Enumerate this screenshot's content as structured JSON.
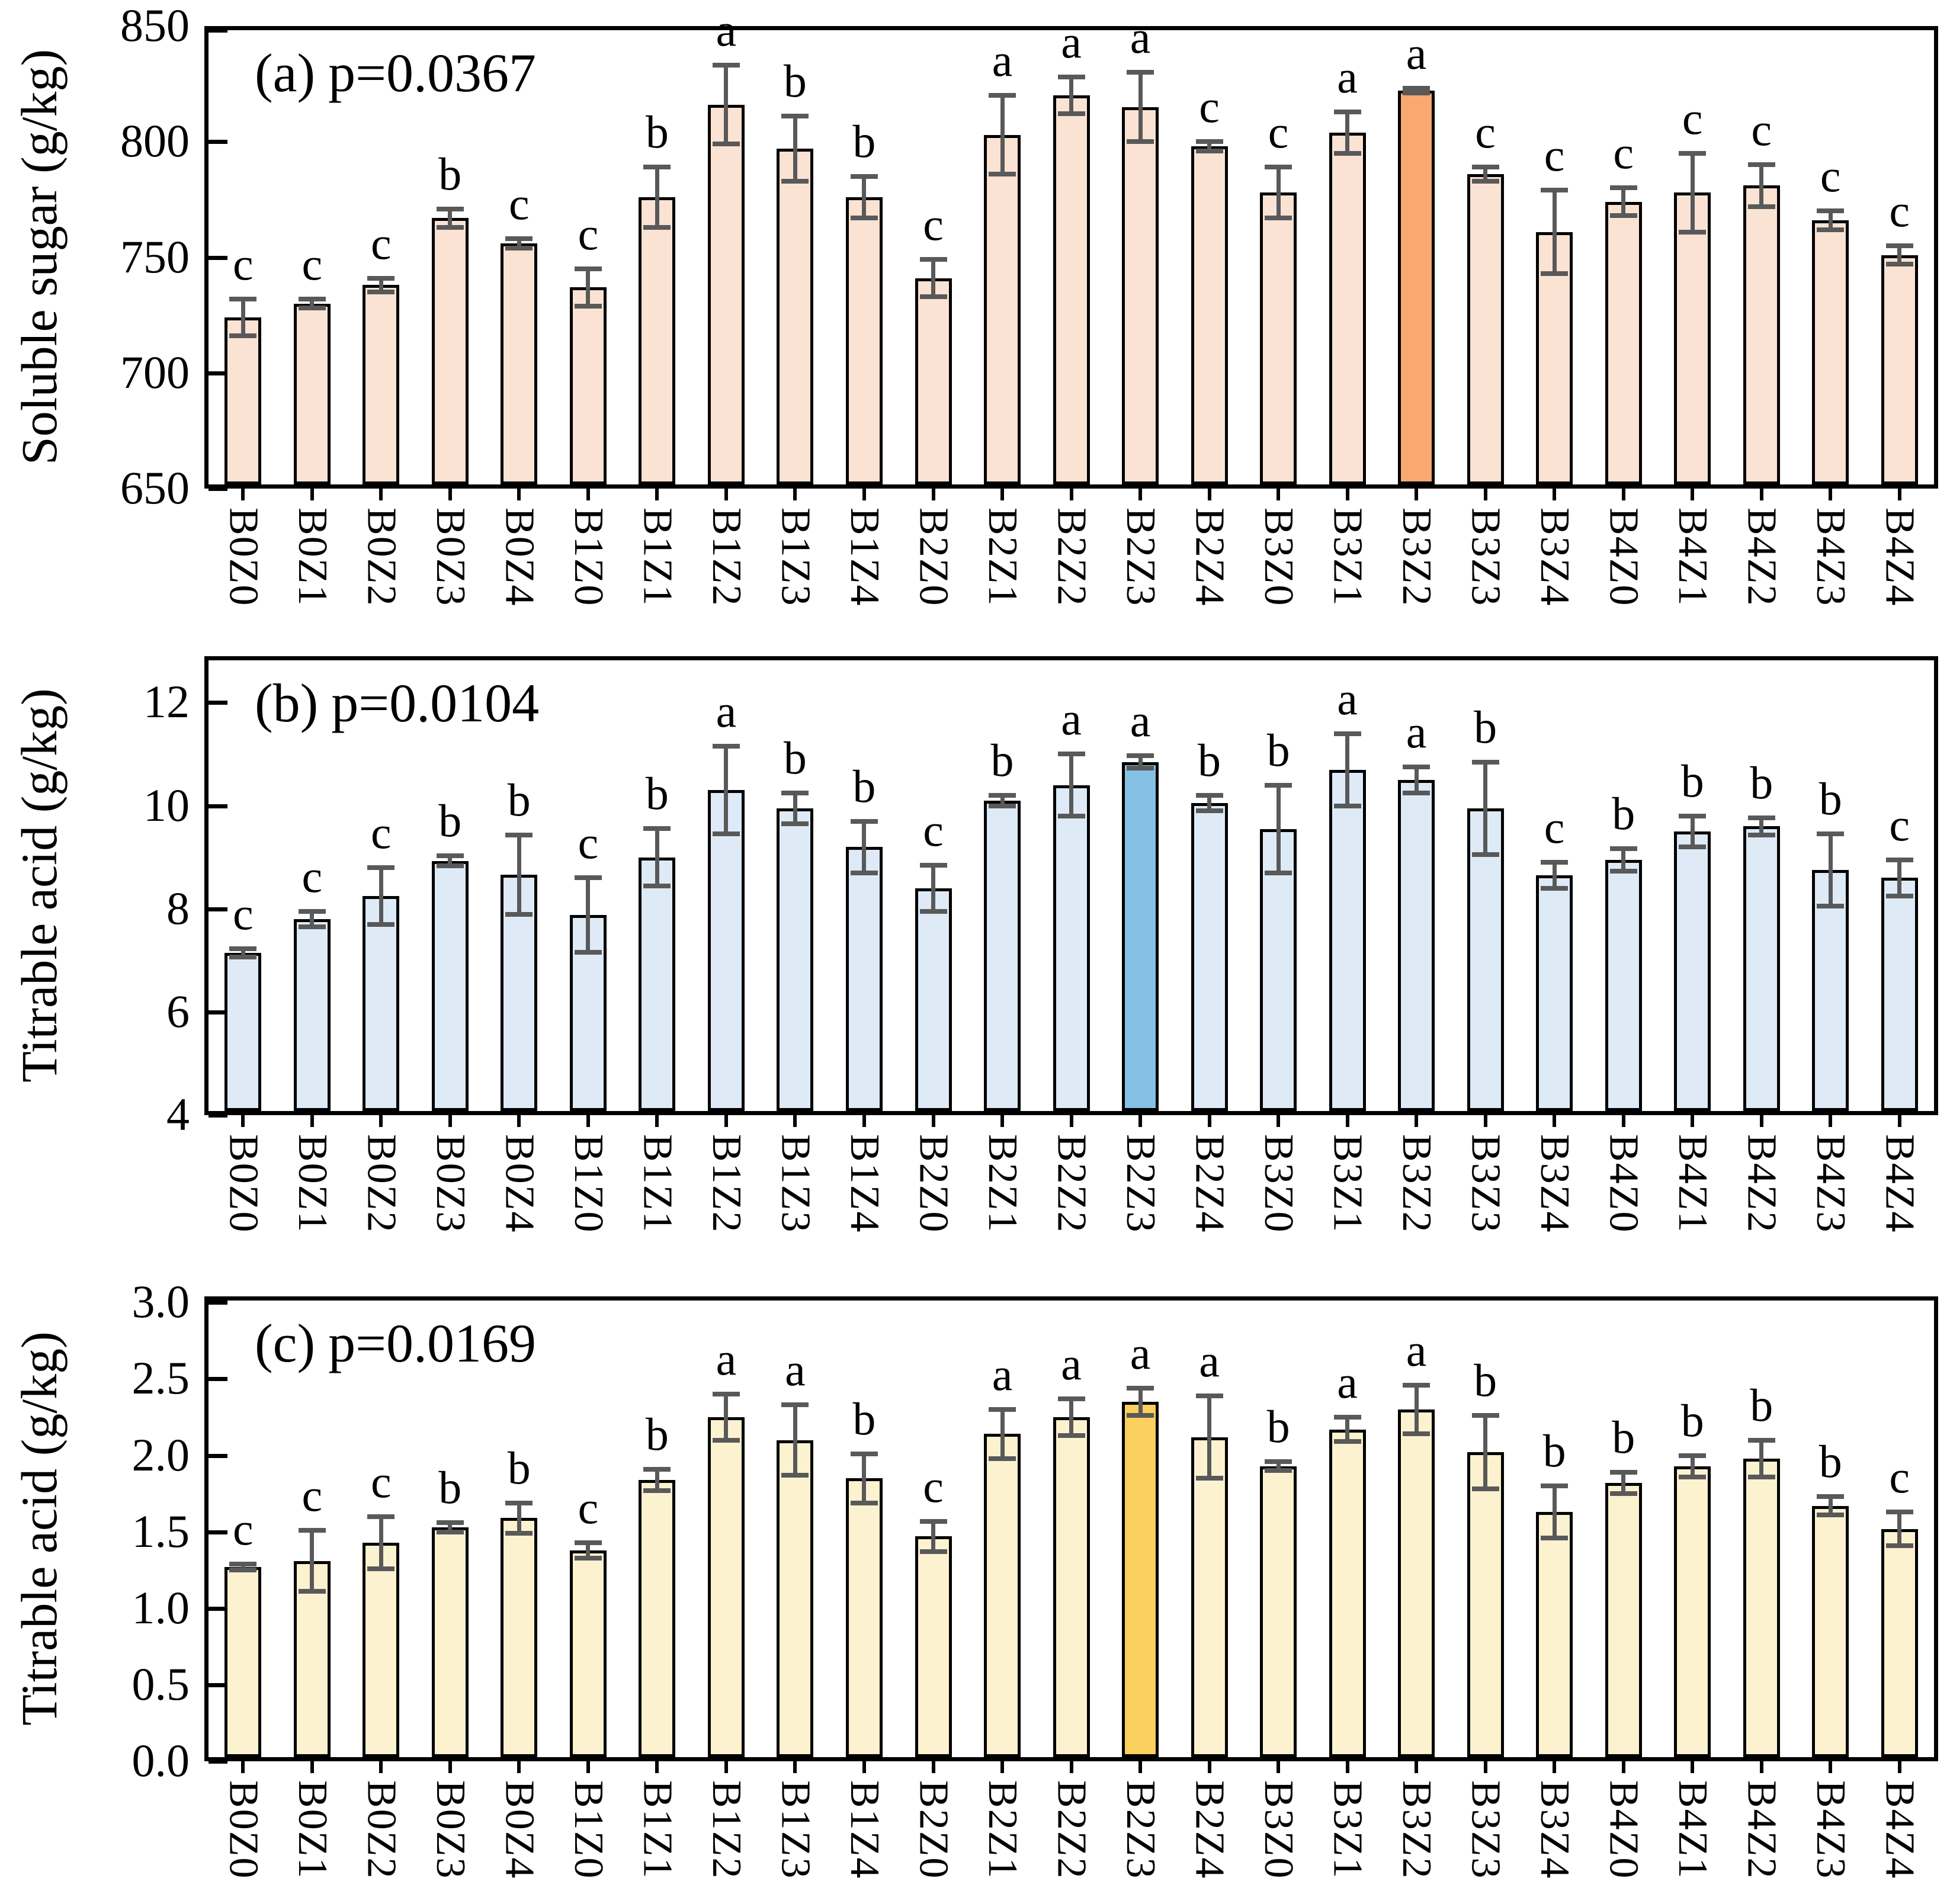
{
  "figure": {
    "description": "Three stacked bar-chart panels comparing 25 treatment combinations (B0-B4 x Z0-Z4)"
  },
  "chart_data": [
    {
      "type": "bar",
      "panel_label": "(a)",
      "p_label": "p=0.0367",
      "ylabel": "Soluble sugar (g/kg)",
      "ylim": [
        650,
        850
      ],
      "yticks": [
        650,
        700,
        750,
        800,
        850
      ],
      "ytick_labels": [
        "650",
        "700",
        "750",
        "800",
        "850"
      ],
      "grid": false,
      "legend": "none",
      "categories": [
        "B0Z0",
        "B0Z1",
        "B0Z2",
        "B0Z3",
        "B0Z4",
        "B1Z0",
        "B1Z1",
        "B1Z2",
        "B1Z3",
        "B1Z4",
        "B2Z0",
        "B2Z1",
        "B2Z2",
        "B2Z3",
        "B2Z4",
        "B3Z0",
        "B3Z1",
        "B3Z2",
        "B3Z3",
        "B3Z4",
        "B4Z0",
        "B4Z1",
        "B4Z2",
        "B4Z3",
        "B4Z4"
      ],
      "values": [
        724,
        730,
        738,
        767,
        756,
        737,
        776,
        816,
        797,
        776,
        741,
        803,
        820,
        815,
        798,
        778,
        804,
        822,
        786,
        761,
        774,
        778,
        781,
        766,
        751
      ],
      "errors": [
        8,
        2,
        3,
        4,
        2,
        8,
        13,
        17,
        14,
        9,
        8,
        17,
        8,
        15,
        2,
        11,
        9,
        1,
        3,
        18,
        6,
        17,
        9,
        4,
        4
      ],
      "sig_letters": [
        "c",
        "c",
        "c",
        "b",
        "c",
        "c",
        "b",
        "a",
        "b",
        "b",
        "c",
        "a",
        "a",
        "a",
        "c",
        "c",
        "a",
        "a",
        "c",
        "c",
        "c",
        "c",
        "c",
        "c",
        "c"
      ],
      "highlight_index": 17,
      "bar_color": "#fbe3d4",
      "highlight_color": "#f9a870",
      "error_color": "#595959"
    },
    {
      "type": "bar",
      "panel_label": "(b)",
      "p_label": "p=0.0104",
      "ylabel": "Titrable acid (g/kg)",
      "ylim": [
        4,
        12.9
      ],
      "yticks": [
        4,
        6,
        8,
        10,
        12
      ],
      "ytick_labels": [
        "4",
        "6",
        "8",
        "10",
        "12"
      ],
      "grid": false,
      "legend": "none",
      "categories": [
        "B0Z0",
        "B0Z1",
        "B0Z2",
        "B0Z3",
        "B0Z4",
        "B1Z0",
        "B1Z1",
        "B1Z2",
        "B1Z3",
        "B1Z4",
        "B2Z0",
        "B2Z1",
        "B2Z2",
        "B2Z3",
        "B2Z4",
        "B3Z0",
        "B3Z1",
        "B3Z2",
        "B3Z3",
        "B3Z4",
        "B4Z0",
        "B4Z1",
        "B4Z2",
        "B4Z3",
        "B4Z4"
      ],
      "values": [
        7.15,
        7.8,
        8.25,
        8.93,
        8.66,
        7.88,
        9.0,
        10.3,
        9.95,
        9.2,
        8.4,
        10.1,
        10.4,
        10.85,
        10.05,
        9.55,
        10.7,
        10.5,
        9.95,
        8.65,
        8.95,
        9.5,
        9.6,
        8.75,
        8.6
      ],
      "errors": [
        0.08,
        0.15,
        0.55,
        0.1,
        0.77,
        0.72,
        0.56,
        0.85,
        0.3,
        0.5,
        0.45,
        0.1,
        0.6,
        0.12,
        0.15,
        0.85,
        0.7,
        0.25,
        0.9,
        0.25,
        0.22,
        0.3,
        0.17,
        0.7,
        0.35
      ],
      "sig_letters": [
        "c",
        "c",
        "c",
        "b",
        "b",
        "c",
        "b",
        "a",
        "b",
        "b",
        "c",
        "b",
        "a",
        "a",
        "b",
        "b",
        "a",
        "a",
        "b",
        "c",
        "b",
        "b",
        "b",
        "b",
        "c"
      ],
      "highlight_index": 13,
      "bar_color": "#deebf7",
      "highlight_color": "#85c1e5",
      "error_color": "#595959"
    },
    {
      "type": "bar",
      "panel_label": "(c)",
      "p_label": "p=0.0169",
      "ylabel": "Titrable acid (g/kg)",
      "ylim": [
        0,
        3.04
      ],
      "yticks": [
        0,
        0.5,
        1,
        1.5,
        2,
        2.5,
        3
      ],
      "ytick_labels": [
        "0.0",
        "0.5",
        "1.0",
        "1.5",
        "2.0",
        "2.5",
        "3.0"
      ],
      "grid": false,
      "legend": "none",
      "categories": [
        "B0Z0",
        "B0Z1",
        "B0Z2",
        "B0Z3",
        "B0Z4",
        "B1Z0",
        "B1Z1",
        "B1Z2",
        "B1Z3",
        "B1Z4",
        "B2Z0",
        "B2Z1",
        "B2Z2",
        "B2Z3",
        "B2Z4",
        "B3Z0",
        "B3Z1",
        "B3Z2",
        "B3Z3",
        "B3Z4",
        "B4Z0",
        "B4Z1",
        "B4Z2",
        "B4Z3",
        "B4Z4"
      ],
      "values": [
        1.27,
        1.31,
        1.43,
        1.53,
        1.59,
        1.38,
        1.84,
        2.25,
        2.1,
        1.85,
        1.47,
        2.14,
        2.25,
        2.35,
        2.12,
        1.93,
        2.17,
        2.3,
        2.02,
        1.63,
        1.82,
        1.93,
        1.98,
        1.67,
        1.52
      ],
      "errors": [
        0.02,
        0.2,
        0.17,
        0.03,
        0.1,
        0.05,
        0.07,
        0.15,
        0.23,
        0.16,
        0.1,
        0.16,
        0.12,
        0.09,
        0.27,
        0.03,
        0.08,
        0.16,
        0.24,
        0.17,
        0.07,
        0.07,
        0.12,
        0.06,
        0.11
      ],
      "sig_letters": [
        "c",
        "c",
        "c",
        "b",
        "b",
        "c",
        "b",
        "a",
        "a",
        "b",
        "c",
        "a",
        "a",
        "a",
        "a",
        "b",
        "a",
        "a",
        "b",
        "b",
        "b",
        "b",
        "b",
        "b",
        "c"
      ],
      "highlight_index": 13,
      "bar_color": "#fdf2d0",
      "highlight_color": "#fbd05e",
      "error_color": "#595959"
    }
  ]
}
